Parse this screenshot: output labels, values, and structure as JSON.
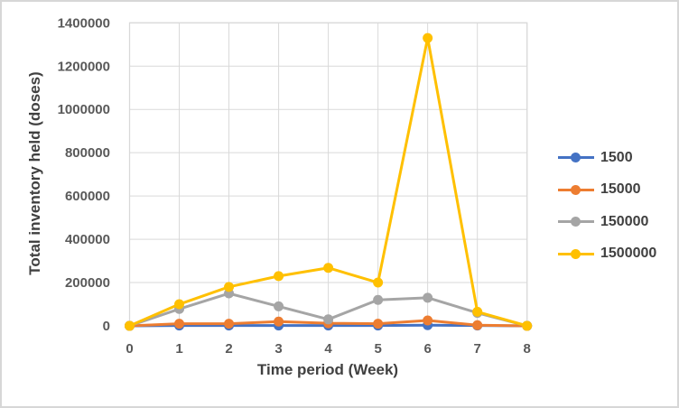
{
  "window": {
    "background": "#ffffff",
    "border_color": "#d7d7d7"
  },
  "chart_data": {
    "type": "line",
    "title": "",
    "xlabel": "Time period (Week)",
    "ylabel": "Total inventory held (doses)",
    "x": [
      0,
      1,
      2,
      3,
      4,
      5,
      6,
      7,
      8
    ],
    "xlim": [
      0,
      8
    ],
    "ylim": [
      0,
      1400000
    ],
    "yticks": [
      0,
      200000,
      400000,
      600000,
      800000,
      1000000,
      1200000,
      1400000
    ],
    "grid": true,
    "grid_color": "#d9d9d9",
    "tick_color": "#595959",
    "axis_title_color": "#404040",
    "legend_position": "right",
    "marker": "circle",
    "series": [
      {
        "name": "1500",
        "color": "#4472C4",
        "values": [
          0,
          1500,
          1500,
          1500,
          1500,
          1500,
          3000,
          1500,
          0
        ]
      },
      {
        "name": "15000",
        "color": "#ED7D31",
        "values": [
          0,
          10000,
          10000,
          20000,
          12000,
          10000,
          25000,
          3000,
          0
        ]
      },
      {
        "name": "150000",
        "color": "#A5A5A5",
        "values": [
          0,
          78000,
          150000,
          90000,
          30000,
          120000,
          130000,
          60000,
          0
        ]
      },
      {
        "name": "1500000",
        "color": "#FFC000",
        "values": [
          0,
          100000,
          180000,
          230000,
          268000,
          200000,
          1330000,
          65000,
          0
        ]
      }
    ]
  }
}
